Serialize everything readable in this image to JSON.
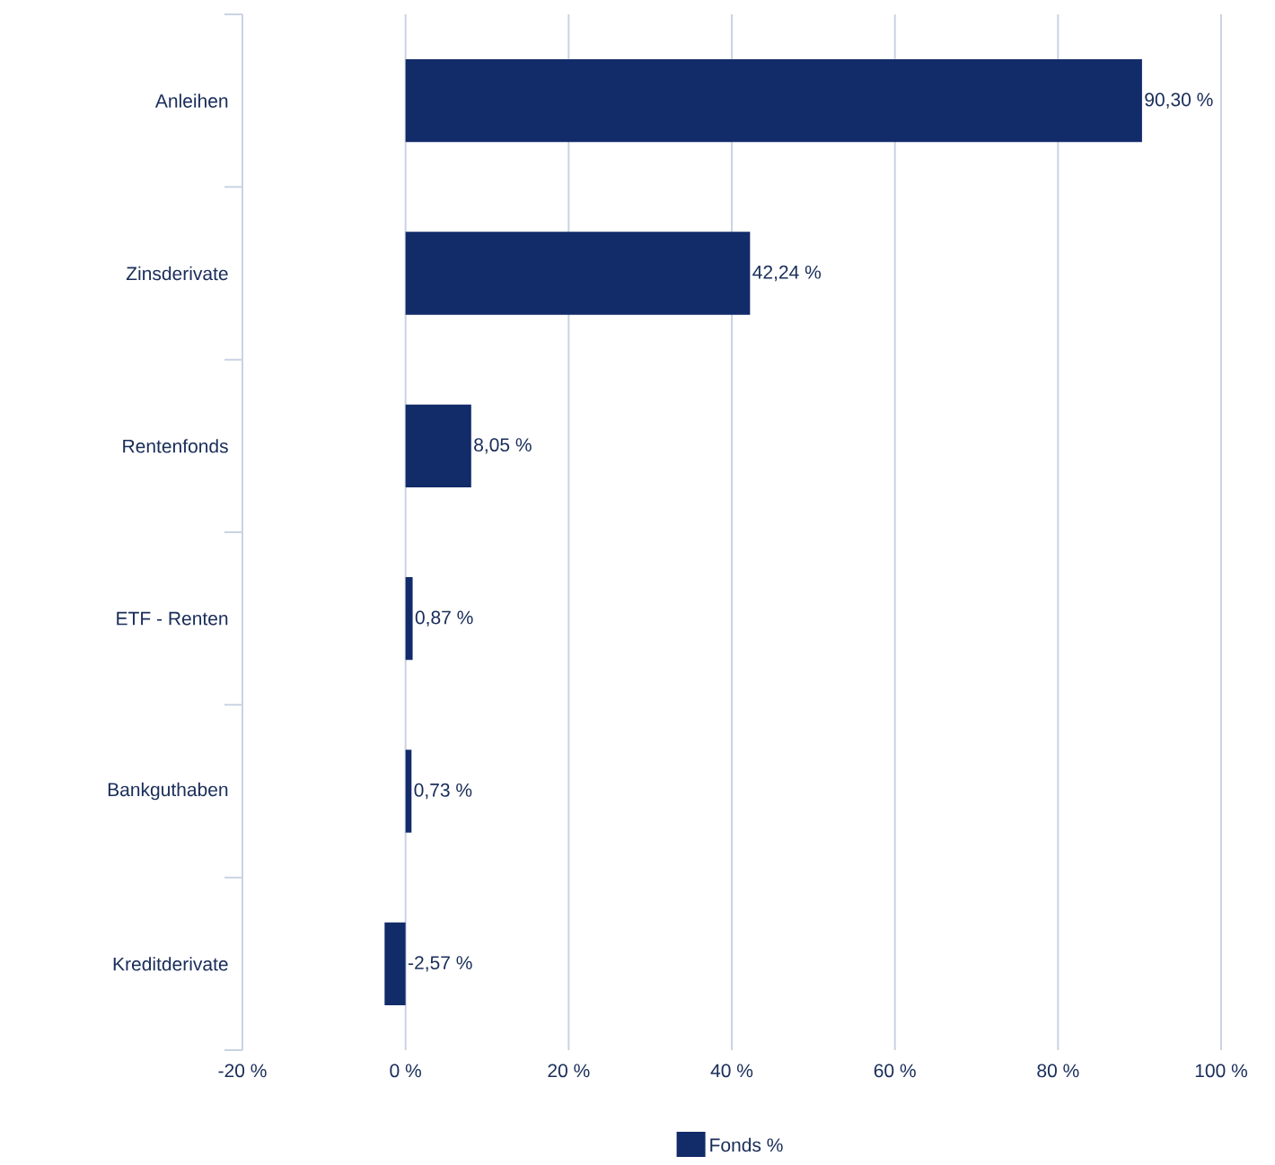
{
  "chart_data": {
    "type": "bar",
    "orientation": "horizontal",
    "categories": [
      "Anleihen",
      "Zinsderivate",
      "Rentenfonds",
      "ETF - Renten",
      "Bankguthaben",
      "Kreditderivate"
    ],
    "series": [
      {
        "name": "Fonds %",
        "color": "#122b69",
        "values": [
          90.3,
          42.24,
          8.05,
          0.87,
          0.73,
          -2.57
        ],
        "value_labels": [
          "90,30 %",
          "42,24 %",
          "8,05 %",
          "0,87 %",
          "0,73 %",
          "-2,57 %"
        ]
      }
    ],
    "xlim": [
      -20,
      100
    ],
    "xticks": [
      {
        "value": -20,
        "label": "-20 %"
      },
      {
        "value": 0,
        "label": "0 %"
      },
      {
        "value": 20,
        "label": "20 %"
      },
      {
        "value": 40,
        "label": "40 %"
      },
      {
        "value": 60,
        "label": "60 %"
      },
      {
        "value": 80,
        "label": "80 %"
      },
      {
        "value": 100,
        "label": "100 %"
      }
    ],
    "grid": "x",
    "legend": "bottom"
  }
}
